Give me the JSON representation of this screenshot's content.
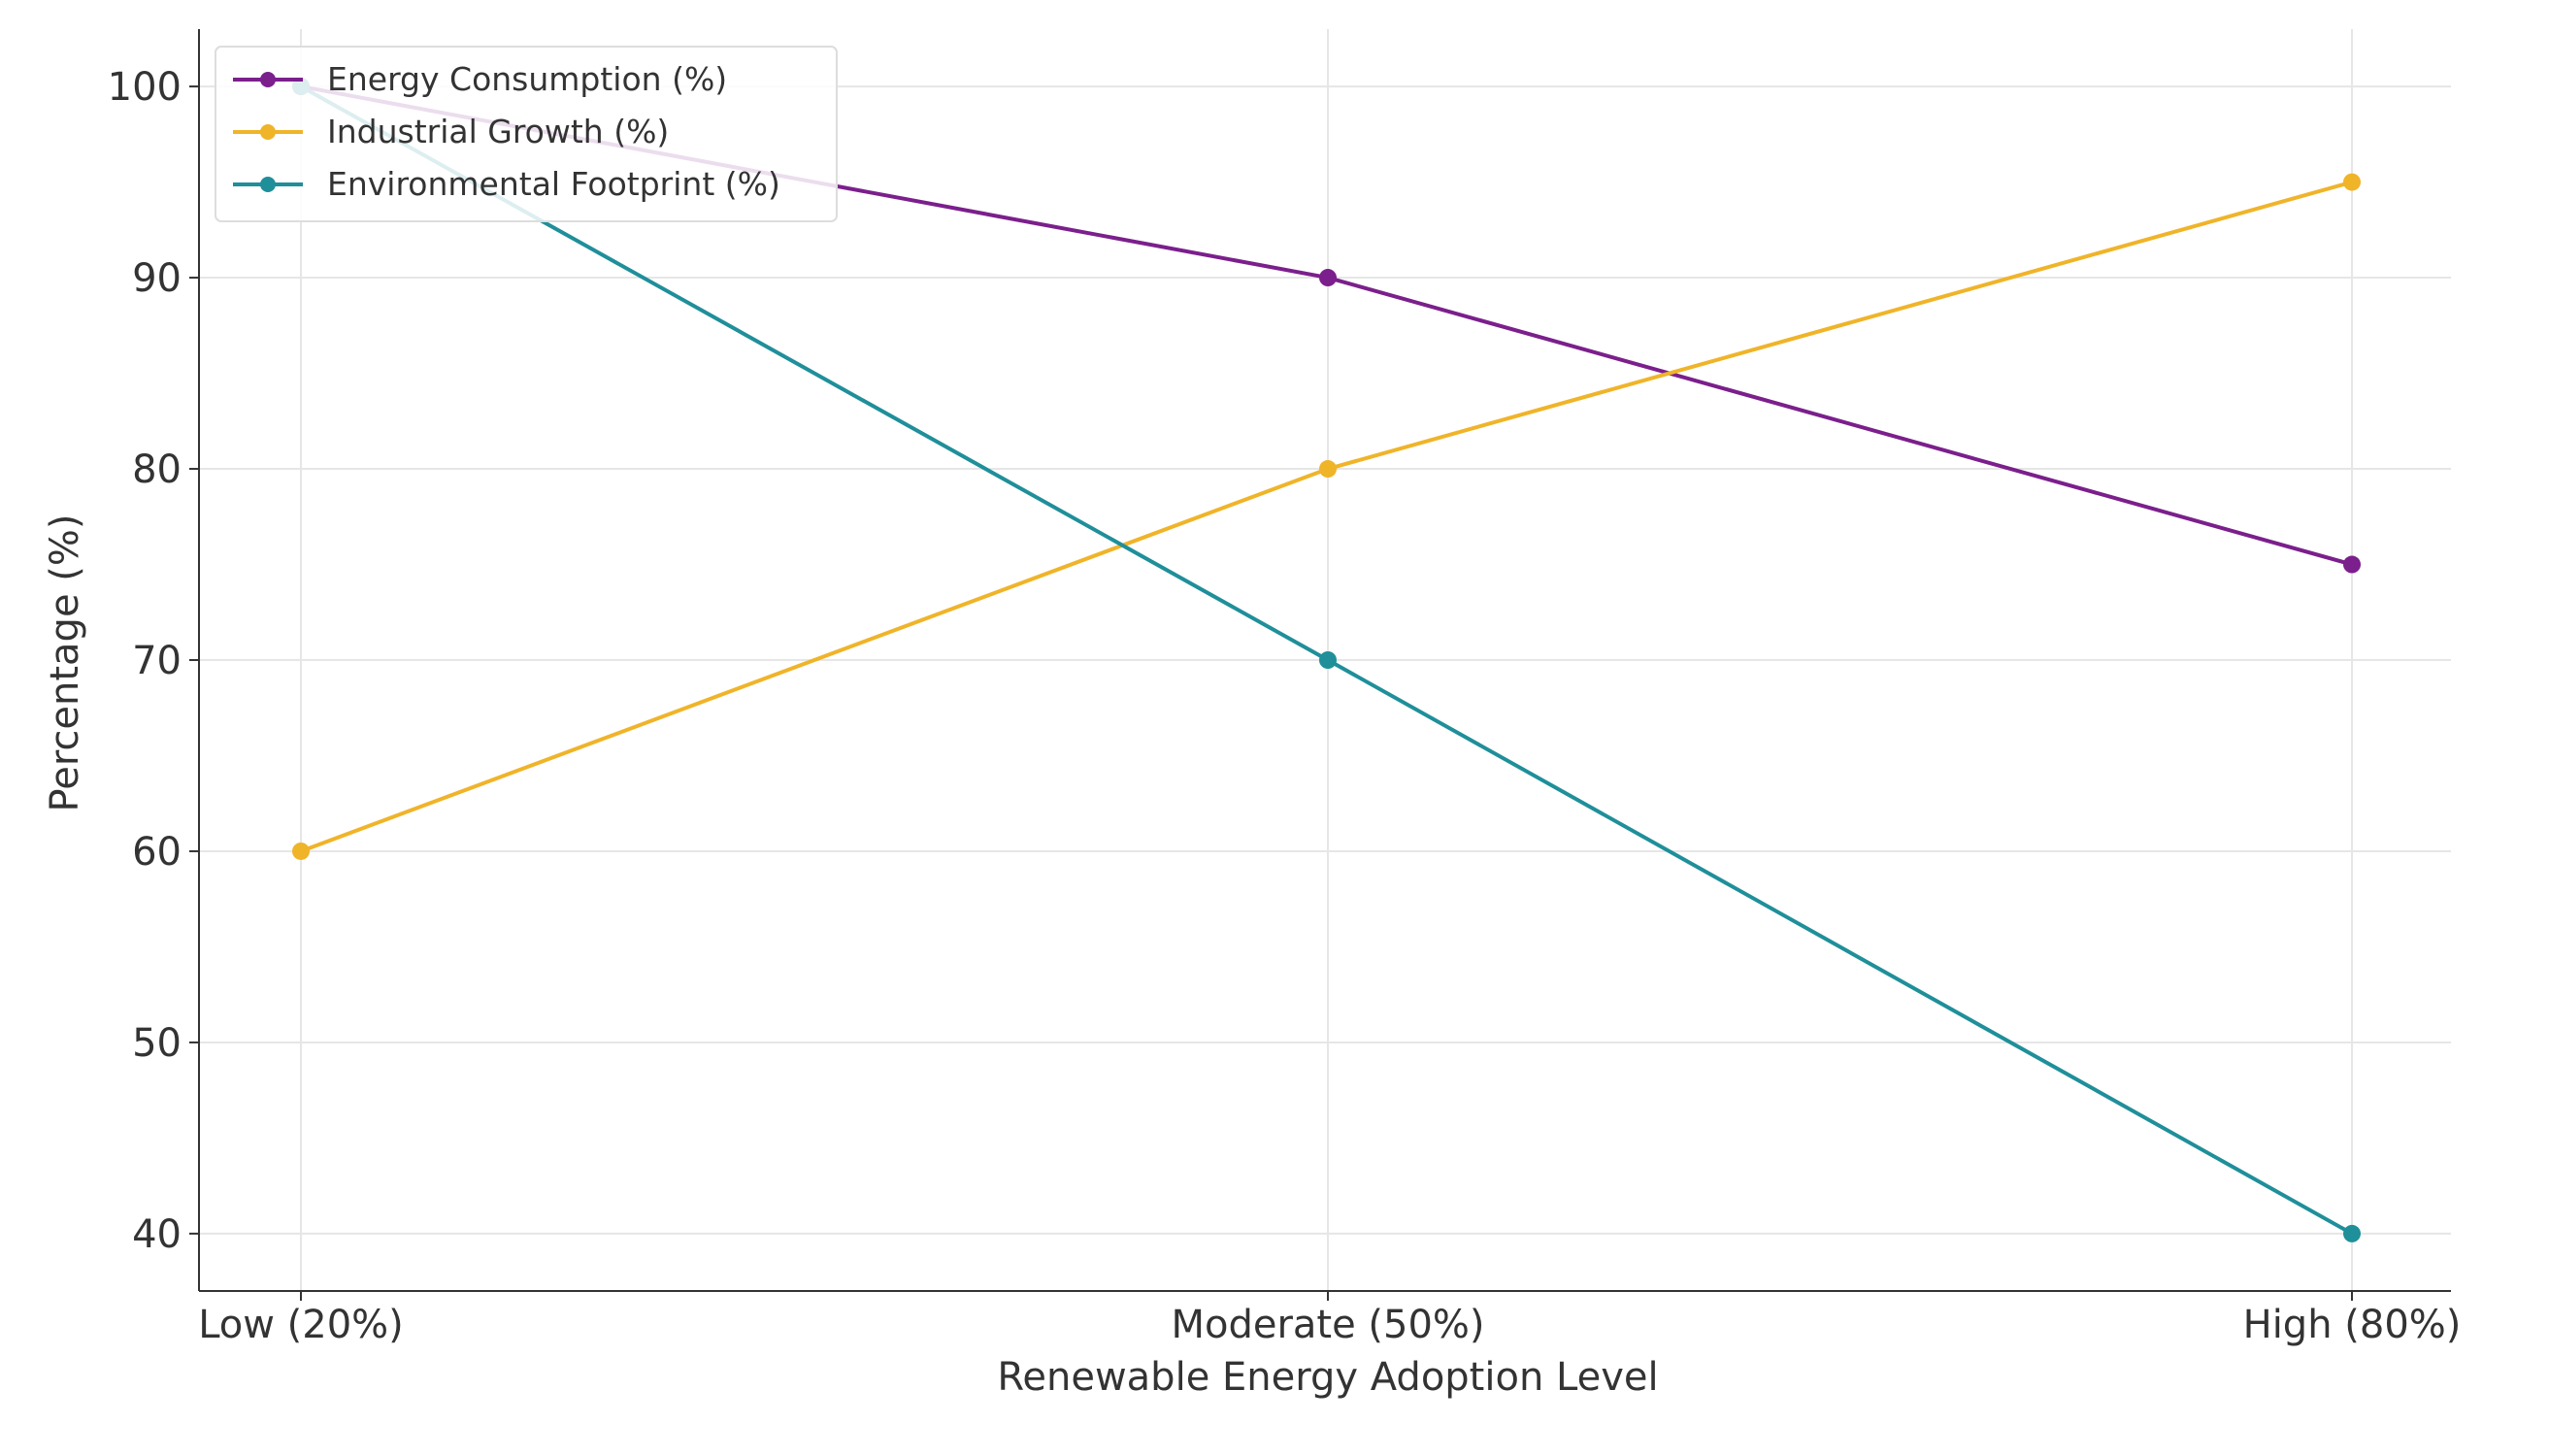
{
  "chart_data": {
    "type": "line",
    "title": "",
    "xlabel": "Renewable Energy Adoption Level",
    "ylabel": "Percentage (%)",
    "categories": [
      "Low (20%)",
      "Moderate (50%)",
      "High (80%)"
    ],
    "ylim": [
      37,
      103
    ],
    "yticks": [
      40,
      50,
      60,
      70,
      80,
      90,
      100
    ],
    "grid": true,
    "legend_position": "top-left",
    "series": [
      {
        "name": "Energy Consumption (%)",
        "color": "#7b1f8c",
        "values": [
          100,
          90,
          75
        ]
      },
      {
        "name": "Industrial Growth (%)",
        "color": "#f0b429",
        "values": [
          60,
          80,
          95
        ]
      },
      {
        "name": "Environmental Footprint (%)",
        "color": "#1f8f9a",
        "values": [
          100,
          70,
          40
        ]
      }
    ]
  }
}
